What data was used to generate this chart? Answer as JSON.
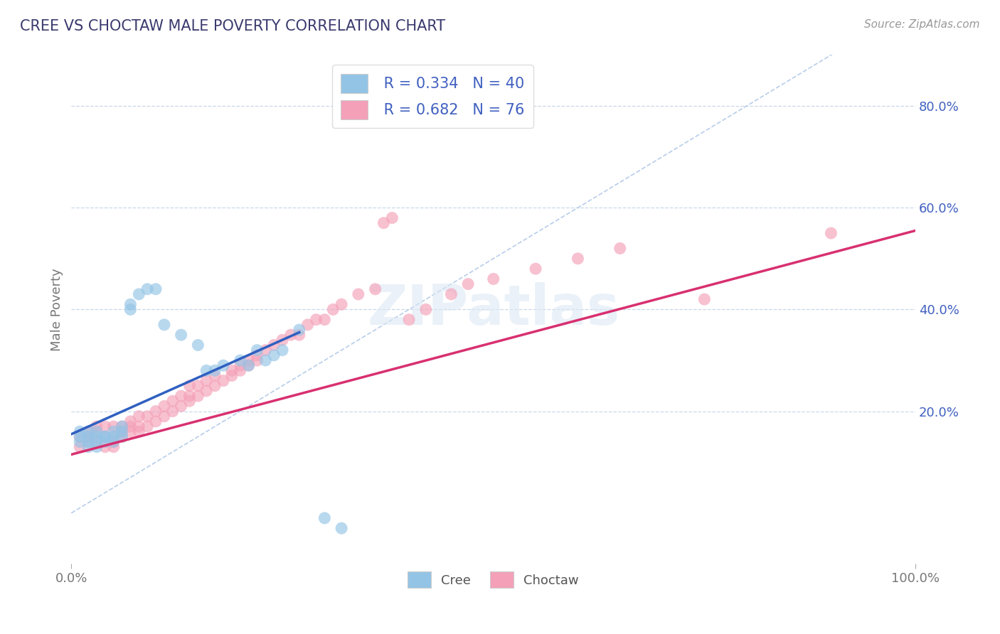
{
  "title": "CREE VS CHOCTAW MALE POVERTY CORRELATION CHART",
  "source": "Source: ZipAtlas.com",
  "ylabel": "Male Poverty",
  "watermark": "ZIPatlas",
  "cree_R": 0.334,
  "cree_N": 40,
  "choctaw_R": 0.682,
  "choctaw_N": 76,
  "cree_color": "#93c4e6",
  "choctaw_color": "#f4a0b8",
  "cree_line_color": "#3060c0",
  "choctaw_line_color": "#d83070",
  "diagonal_color": "#b0c8e8",
  "background_color": "#ffffff",
  "grid_color": "#c8d8e8",
  "title_color": "#3a3a6e",
  "right_tick_color": "#4060c0",
  "xlim": [
    0.0,
    1.0
  ],
  "ylim": [
    -0.1,
    0.9
  ],
  "y_ticks": [
    0.2,
    0.4,
    0.6,
    0.8
  ],
  "y_tick_labels": [
    "20.0%",
    "40.0%",
    "60.0%",
    "80.0%"
  ],
  "cree_x": [
    0.01,
    0.01,
    0.01,
    0.02,
    0.02,
    0.02,
    0.02,
    0.03,
    0.03,
    0.03,
    0.03,
    0.04,
    0.04,
    0.04,
    0.05,
    0.05,
    0.05,
    0.06,
    0.06,
    0.06,
    0.07,
    0.07,
    0.08,
    0.09,
    0.1,
    0.11,
    0.13,
    0.15,
    0.16,
    0.17,
    0.18,
    0.2,
    0.21,
    0.22,
    0.23,
    0.24,
    0.25,
    0.27,
    0.3,
    0.32
  ],
  "cree_y": [
    0.14,
    0.15,
    0.16,
    0.13,
    0.14,
    0.15,
    0.16,
    0.13,
    0.14,
    0.15,
    0.16,
    0.14,
    0.15,
    0.15,
    0.14,
    0.15,
    0.16,
    0.15,
    0.16,
    0.17,
    0.4,
    0.41,
    0.43,
    0.44,
    0.44,
    0.37,
    0.35,
    0.33,
    0.28,
    0.28,
    0.29,
    0.3,
    0.29,
    0.32,
    0.3,
    0.31,
    0.32,
    0.36,
    -0.01,
    -0.03
  ],
  "choctaw_x": [
    0.01,
    0.01,
    0.02,
    0.02,
    0.02,
    0.03,
    0.03,
    0.03,
    0.04,
    0.04,
    0.04,
    0.05,
    0.05,
    0.05,
    0.05,
    0.06,
    0.06,
    0.06,
    0.07,
    0.07,
    0.07,
    0.08,
    0.08,
    0.08,
    0.09,
    0.09,
    0.1,
    0.1,
    0.11,
    0.11,
    0.12,
    0.12,
    0.13,
    0.13,
    0.14,
    0.14,
    0.14,
    0.15,
    0.15,
    0.16,
    0.16,
    0.17,
    0.17,
    0.18,
    0.19,
    0.19,
    0.2,
    0.2,
    0.21,
    0.21,
    0.22,
    0.22,
    0.23,
    0.24,
    0.25,
    0.26,
    0.27,
    0.28,
    0.29,
    0.3,
    0.31,
    0.32,
    0.34,
    0.36,
    0.37,
    0.38,
    0.4,
    0.42,
    0.45,
    0.47,
    0.5,
    0.55,
    0.6,
    0.65,
    0.75,
    0.9
  ],
  "choctaw_y": [
    0.13,
    0.15,
    0.14,
    0.15,
    0.16,
    0.14,
    0.16,
    0.17,
    0.13,
    0.15,
    0.17,
    0.13,
    0.14,
    0.15,
    0.17,
    0.15,
    0.16,
    0.17,
    0.16,
    0.17,
    0.18,
    0.16,
    0.17,
    0.19,
    0.17,
    0.19,
    0.18,
    0.2,
    0.19,
    0.21,
    0.2,
    0.22,
    0.21,
    0.23,
    0.22,
    0.23,
    0.25,
    0.23,
    0.25,
    0.24,
    0.26,
    0.25,
    0.27,
    0.26,
    0.27,
    0.28,
    0.28,
    0.29,
    0.29,
    0.3,
    0.3,
    0.31,
    0.32,
    0.33,
    0.34,
    0.35,
    0.35,
    0.37,
    0.38,
    0.38,
    0.4,
    0.41,
    0.43,
    0.44,
    0.57,
    0.58,
    0.38,
    0.4,
    0.43,
    0.45,
    0.46,
    0.48,
    0.5,
    0.52,
    0.42,
    0.55
  ],
  "figsize": [
    14.06,
    8.92
  ],
  "dpi": 100
}
